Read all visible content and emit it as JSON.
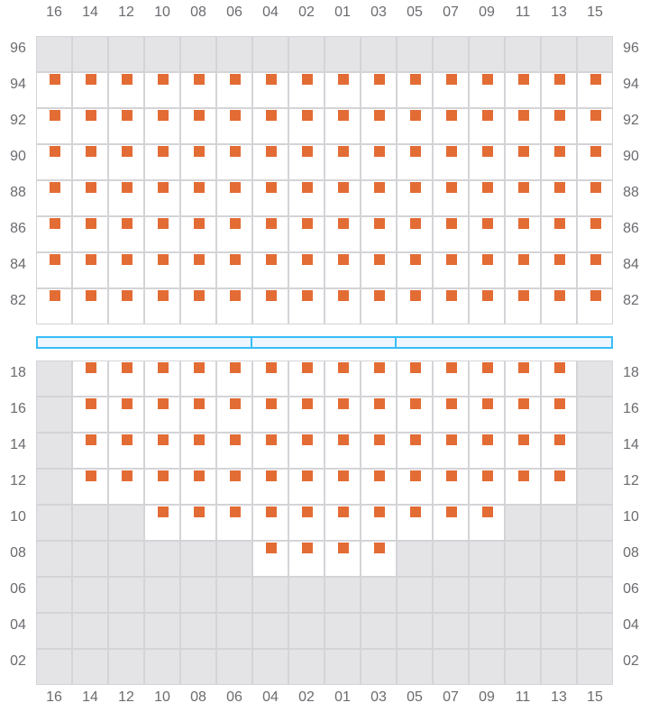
{
  "columns": [
    "16",
    "14",
    "12",
    "10",
    "08",
    "06",
    "04",
    "02",
    "01",
    "03",
    "05",
    "07",
    "09",
    "11",
    "13",
    "15"
  ],
  "colors": {
    "seat": "#e36c35",
    "unavailable": "#e4e4e7",
    "grid": "#d4d4d8",
    "divider": "#38bdf8"
  },
  "upper_section": {
    "rows": [
      {
        "label": "96",
        "available": []
      },
      {
        "label": "94",
        "available": [
          "16",
          "14",
          "12",
          "10",
          "08",
          "06",
          "04",
          "02",
          "01",
          "03",
          "05",
          "07",
          "09",
          "11",
          "13",
          "15"
        ]
      },
      {
        "label": "92",
        "available": [
          "16",
          "14",
          "12",
          "10",
          "08",
          "06",
          "04",
          "02",
          "01",
          "03",
          "05",
          "07",
          "09",
          "11",
          "13",
          "15"
        ]
      },
      {
        "label": "90",
        "available": [
          "16",
          "14",
          "12",
          "10",
          "08",
          "06",
          "04",
          "02",
          "01",
          "03",
          "05",
          "07",
          "09",
          "11",
          "13",
          "15"
        ]
      },
      {
        "label": "88",
        "available": [
          "16",
          "14",
          "12",
          "10",
          "08",
          "06",
          "04",
          "02",
          "01",
          "03",
          "05",
          "07",
          "09",
          "11",
          "13",
          "15"
        ]
      },
      {
        "label": "86",
        "available": [
          "16",
          "14",
          "12",
          "10",
          "08",
          "06",
          "04",
          "02",
          "01",
          "03",
          "05",
          "07",
          "09",
          "11",
          "13",
          "15"
        ]
      },
      {
        "label": "84",
        "available": [
          "16",
          "14",
          "12",
          "10",
          "08",
          "06",
          "04",
          "02",
          "01",
          "03",
          "05",
          "07",
          "09",
          "11",
          "13",
          "15"
        ]
      },
      {
        "label": "82",
        "available": [
          "16",
          "14",
          "12",
          "10",
          "08",
          "06",
          "04",
          "02",
          "01",
          "03",
          "05",
          "07",
          "09",
          "11",
          "13",
          "15"
        ]
      }
    ],
    "seated_rows": [
      "94",
      "92",
      "90",
      "88",
      "86",
      "84",
      "82"
    ]
  },
  "divider_segments": 3,
  "lower_section": {
    "rows": [
      {
        "label": "18",
        "available": [
          "14",
          "12",
          "10",
          "08",
          "06",
          "04",
          "02",
          "01",
          "03",
          "05",
          "07",
          "09",
          "11",
          "13"
        ]
      },
      {
        "label": "16",
        "available": [
          "14",
          "12",
          "10",
          "08",
          "06",
          "04",
          "02",
          "01",
          "03",
          "05",
          "07",
          "09",
          "11",
          "13"
        ]
      },
      {
        "label": "14",
        "available": [
          "14",
          "12",
          "10",
          "08",
          "06",
          "04",
          "02",
          "01",
          "03",
          "05",
          "07",
          "09",
          "11",
          "13"
        ]
      },
      {
        "label": "12",
        "available": [
          "14",
          "12",
          "10",
          "08",
          "06",
          "04",
          "02",
          "01",
          "03",
          "05",
          "07",
          "09",
          "11",
          "13"
        ]
      },
      {
        "label": "10",
        "available": [
          "10",
          "08",
          "06",
          "04",
          "02",
          "01",
          "03",
          "05",
          "07",
          "09"
        ]
      },
      {
        "label": "08",
        "available": [
          "04",
          "02",
          "01",
          "03"
        ]
      },
      {
        "label": "06",
        "available": []
      },
      {
        "label": "04",
        "available": []
      },
      {
        "label": "02",
        "available": []
      }
    ]
  }
}
